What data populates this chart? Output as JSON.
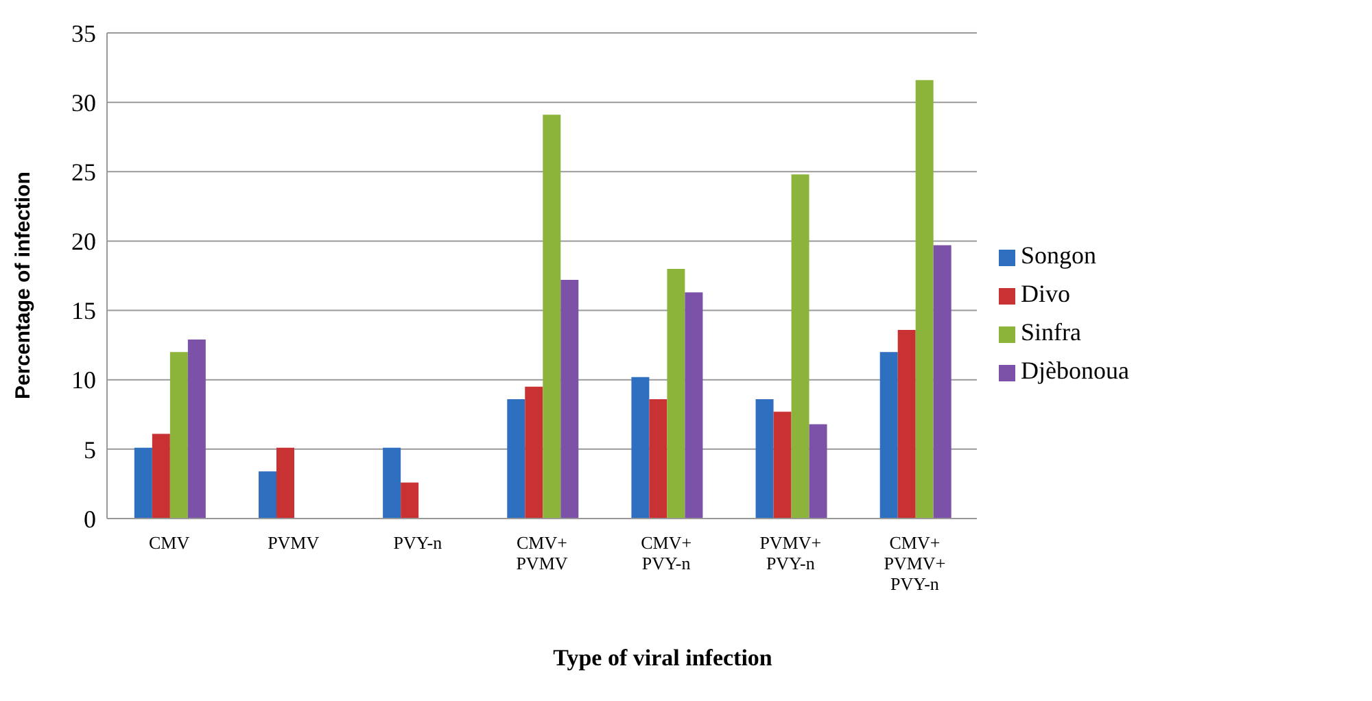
{
  "chart_data": {
    "type": "bar",
    "xlabel": "Type of viral infection",
    "ylabel": "Percentage of infection",
    "categories": [
      "CMV",
      "PVMV",
      "PVY-n",
      "CMV+\nPVMV",
      "CMV+\nPVY-n",
      "PVMV+\nPVY-n",
      "CMV+\nPVMV+\nPVY-n"
    ],
    "series": [
      {
        "name": "Songon",
        "color": "#2e6fc0",
        "values": [
          5.1,
          3.4,
          5.1,
          8.6,
          10.2,
          8.6,
          12.0
        ]
      },
      {
        "name": "Divo",
        "color": "#c83232",
        "values": [
          6.1,
          5.1,
          2.6,
          9.5,
          8.6,
          7.7,
          13.6
        ]
      },
      {
        "name": "Sinfra",
        "color": "#8cb43a",
        "values": [
          12.0,
          0,
          0,
          29.1,
          18.0,
          24.8,
          31.6
        ]
      },
      {
        "name": "Djèbonoua",
        "color": "#7b52a8",
        "values": [
          12.9,
          0,
          0,
          17.2,
          16.3,
          6.8,
          19.7
        ]
      }
    ],
    "ylim": [
      0,
      35
    ],
    "yticks": [
      0,
      5,
      10,
      15,
      20,
      25,
      30,
      35
    ],
    "grid": "y",
    "legend": "right"
  }
}
